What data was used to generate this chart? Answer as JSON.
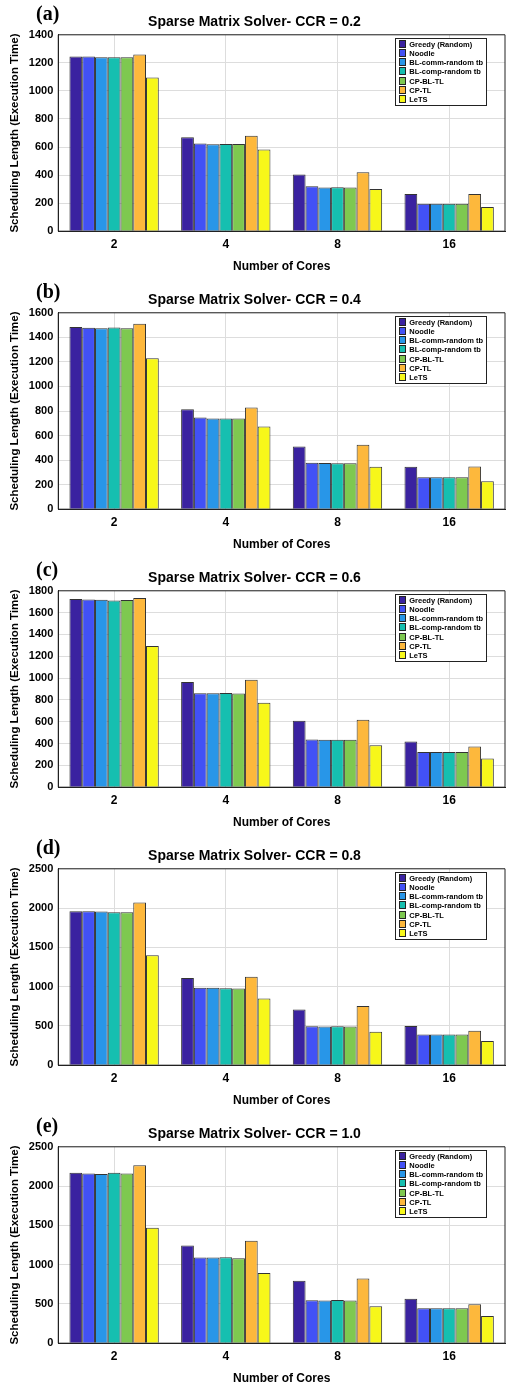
{
  "chart_data": [
    {
      "type": "bar",
      "title": "Sparse Matrix Solver- CCR = 0.2",
      "xlabel": "Number of Cores",
      "ylabel": "Scheduling Length (Execution Time)",
      "annotations": [
        "(a)"
      ],
      "categories": [
        "2",
        "4",
        "8",
        "16"
      ],
      "ylim": [
        0,
        1400
      ],
      "yticks": [
        0,
        200,
        400,
        600,
        800,
        1000,
        1200,
        1400
      ],
      "grid": true,
      "legend": "top right",
      "series": [
        {
          "name": "Greedy (Random)",
          "color": "#3a22a0",
          "values": [
            1245,
            670,
            405,
            265
          ]
        },
        {
          "name": "Noodle",
          "color": "#4251f5",
          "values": [
            1245,
            625,
            320,
            195
          ]
        },
        {
          "name": "BL-comm-random tb",
          "color": "#2896e8",
          "values": [
            1240,
            620,
            312,
            195
          ]
        },
        {
          "name": "BL-comp-random tb",
          "color": "#16bfb0",
          "values": [
            1240,
            622,
            314,
            195
          ]
        },
        {
          "name": "CP-BL-TL",
          "color": "#7ec850",
          "values": [
            1240,
            622,
            312,
            195
          ]
        },
        {
          "name": "CP-TL",
          "color": "#fdb83c",
          "values": [
            1260,
            680,
            420,
            265
          ]
        },
        {
          "name": "LeTS",
          "color": "#f7f71a",
          "values": [
            1095,
            583,
            300,
            172
          ]
        }
      ]
    },
    {
      "type": "bar",
      "title": "Sparse Matrix Solver- CCR = 0.4",
      "xlabel": "Number of Cores",
      "ylabel": "Scheduling Length (Execution Time)",
      "annotations": [
        "(b)"
      ],
      "categories": [
        "2",
        "4",
        "8",
        "16"
      ],
      "ylim": [
        0,
        1600
      ],
      "yticks": [
        0,
        200,
        400,
        600,
        800,
        1000,
        1200,
        1400,
        1600
      ],
      "grid": true,
      "legend": "top right",
      "series": [
        {
          "name": "Greedy (Random)",
          "color": "#3a22a0",
          "values": [
            1485,
            815,
            510,
            345
          ]
        },
        {
          "name": "Noodle",
          "color": "#4251f5",
          "values": [
            1478,
            748,
            378,
            260
          ]
        },
        {
          "name": "BL-comm-random tb",
          "color": "#2896e8",
          "values": [
            1475,
            738,
            376,
            260
          ]
        },
        {
          "name": "BL-comp-random tb",
          "color": "#16bfb0",
          "values": [
            1480,
            738,
            374,
            260
          ]
        },
        {
          "name": "CP-BL-TL",
          "color": "#7ec850",
          "values": [
            1475,
            738,
            374,
            260
          ]
        },
        {
          "name": "CP-TL",
          "color": "#fdb83c",
          "values": [
            1510,
            828,
            525,
            348
          ]
        },
        {
          "name": "LeTS",
          "color": "#f7f71a",
          "values": [
            1230,
            673,
            345,
            228
          ]
        }
      ]
    },
    {
      "type": "bar",
      "title": "Sparse Matrix Solver- CCR = 0.6",
      "xlabel": "Number of Cores",
      "ylabel": "Scheduling Length (Execution Time)",
      "annotations": [
        "(c)"
      ],
      "categories": [
        "2",
        "4",
        "8",
        "16"
      ],
      "ylim": [
        0,
        1800
      ],
      "yticks": [
        0,
        200,
        400,
        600,
        800,
        1000,
        1200,
        1400,
        1600,
        1800
      ],
      "grid": true,
      "legend": "top right",
      "series": [
        {
          "name": "Greedy (Random)",
          "color": "#3a22a0",
          "values": [
            1725,
            965,
            608,
            418
          ]
        },
        {
          "name": "Noodle",
          "color": "#4251f5",
          "values": [
            1720,
            862,
            438,
            322
          ]
        },
        {
          "name": "BL-comm-random tb",
          "color": "#2896e8",
          "values": [
            1718,
            862,
            435,
            322
          ]
        },
        {
          "name": "BL-comp-random tb",
          "color": "#16bfb0",
          "values": [
            1712,
            864,
            436,
            322
          ]
        },
        {
          "name": "CP-BL-TL",
          "color": "#7ec850",
          "values": [
            1716,
            858,
            435,
            322
          ]
        },
        {
          "name": "CP-TL",
          "color": "#fdb83c",
          "values": [
            1735,
            985,
            618,
            372
          ]
        },
        {
          "name": "LeTS",
          "color": "#f7f71a",
          "values": [
            1295,
            775,
            385,
            262
          ]
        }
      ]
    },
    {
      "type": "bar",
      "title": "Sparse Matrix Solver- CCR = 0.8",
      "xlabel": "Number of Cores",
      "ylabel": "Scheduling Length (Execution Time)",
      "annotations": [
        "(d)"
      ],
      "categories": [
        "2",
        "4",
        "8",
        "16"
      ],
      "ylim": [
        0,
        2500
      ],
      "yticks": [
        0,
        500,
        1000,
        1500,
        2000,
        2500
      ],
      "grid": true,
      "legend": "top right",
      "series": [
        {
          "name": "Greedy (Random)",
          "color": "#3a22a0",
          "values": [
            1960,
            1110,
            710,
            500
          ]
        },
        {
          "name": "Noodle",
          "color": "#4251f5",
          "values": [
            1960,
            985,
            495,
            390
          ]
        },
        {
          "name": "BL-comm-random tb",
          "color": "#2896e8",
          "values": [
            1958,
            985,
            493,
            390
          ]
        },
        {
          "name": "BL-comp-random tb",
          "color": "#16bfb0",
          "values": [
            1948,
            978,
            495,
            390
          ]
        },
        {
          "name": "CP-BL-TL",
          "color": "#7ec850",
          "values": [
            1948,
            975,
            492,
            390
          ]
        },
        {
          "name": "CP-TL",
          "color": "#fdb83c",
          "values": [
            2070,
            1125,
            755,
            440
          ]
        },
        {
          "name": "LeTS",
          "color": "#f7f71a",
          "values": [
            1400,
            850,
            425,
            308
          ]
        }
      ]
    },
    {
      "type": "bar",
      "title": "Sparse Matrix Solver- CCR = 1.0",
      "xlabel": "Number of Cores",
      "ylabel": "Scheduling Length (Execution Time)",
      "annotations": [
        "(e)"
      ],
      "categories": [
        "2",
        "4",
        "8",
        "16"
      ],
      "ylim": [
        0,
        2500
      ],
      "yticks": [
        0,
        500,
        1000,
        1500,
        2000,
        2500
      ],
      "grid": true,
      "legend": "top right",
      "series": [
        {
          "name": "Greedy (Random)",
          "color": "#3a22a0",
          "values": [
            2170,
            1245,
            795,
            565
          ]
        },
        {
          "name": "Noodle",
          "color": "#4251f5",
          "values": [
            2160,
            1090,
            548,
            445
          ]
        },
        {
          "name": "BL-comm-random tb",
          "color": "#2896e8",
          "values": [
            2155,
            1090,
            545,
            445
          ]
        },
        {
          "name": "BL-comp-random tb",
          "color": "#16bfb0",
          "values": [
            2170,
            1095,
            550,
            445
          ]
        },
        {
          "name": "CP-BL-TL",
          "color": "#7ec850",
          "values": [
            2160,
            1080,
            545,
            445
          ]
        },
        {
          "name": "CP-TL",
          "color": "#fdb83c",
          "values": [
            2265,
            1305,
            825,
            495
          ]
        },
        {
          "name": "LeTS",
          "color": "#f7f71a",
          "values": [
            1470,
            895,
            470,
            345
          ]
        }
      ]
    }
  ]
}
